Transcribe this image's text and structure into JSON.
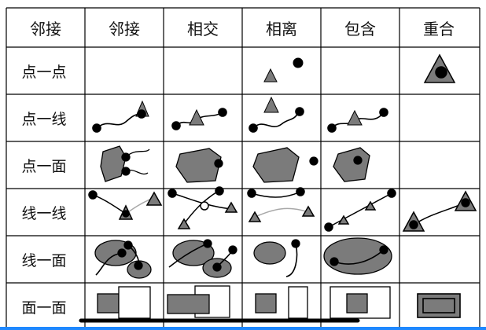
{
  "table": {
    "corner_label": "邻接",
    "columns": [
      "邻接",
      "相交",
      "相离",
      "包含",
      "重合"
    ],
    "rows": [
      "点一点",
      "点一线",
      "点一面",
      "线一线",
      "线一面",
      "面一面"
    ]
  },
  "colors": {
    "fill_gray": "#7b7b7b",
    "line": "#000000",
    "blue_line": "#1e88ff",
    "light_line": "#a8a8a8"
  }
}
